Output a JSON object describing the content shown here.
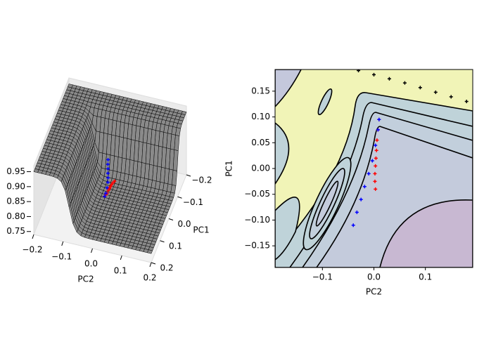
{
  "chart_data": [
    {
      "type": "surface3d",
      "xlabel": "PC2",
      "ylabel": "PC1",
      "xlim": [
        -0.2,
        0.2
      ],
      "xticks": [
        {
          "value": -0.2,
          "label": "−0.2"
        },
        {
          "value": -0.1,
          "label": "−0.1"
        },
        {
          "value": 0,
          "label": "0.0"
        },
        {
          "value": 0.1,
          "label": "0.1"
        },
        {
          "value": 0.2,
          "label": "0.2"
        }
      ],
      "ylim": [
        -0.2,
        0.2
      ],
      "yticks": [
        {
          "value": -0.2,
          "label": "−0.2"
        },
        {
          "value": -0.1,
          "label": "−0.1"
        },
        {
          "value": 0,
          "label": "0.0"
        },
        {
          "value": 0.1,
          "label": "0.1"
        },
        {
          "value": 0.2,
          "label": "0.2"
        }
      ],
      "zlim": [
        0.74,
        0.97
      ],
      "zticks": [
        0.75,
        {
          "value": 0.8,
          "label": "0.80"
        },
        0.85,
        {
          "value": 0.9,
          "label": "0.90"
        },
        0.95
      ],
      "series": [
        {
          "color": "#ff0000",
          "x": [
            0.003,
            0.002,
            0.002,
            0.003,
            0.004,
            0.005,
            0.006,
            0.008,
            0.01
          ],
          "y": [
            -0.04,
            -0.025,
            -0.01,
            0.005,
            0.02,
            0.035,
            0.055,
            0.075,
            0.095
          ],
          "z": [
            0.79,
            0.795,
            0.8,
            0.805,
            0.81,
            0.815,
            0.82,
            0.83,
            0.84
          ]
        },
        {
          "color": "#0000ff",
          "x": [
            -0.04,
            -0.033,
            -0.025,
            -0.018,
            -0.01,
            -0.003,
            0.003,
            0.008,
            0.01
          ],
          "y": [
            -0.11,
            -0.085,
            -0.06,
            -0.035,
            -0.01,
            0.015,
            0.045,
            0.075,
            0.095
          ],
          "z": [
            0.8,
            0.805,
            0.81,
            0.815,
            0.82,
            0.825,
            0.83,
            0.835,
            0.84
          ]
        }
      ]
    },
    {
      "type": "contour",
      "xlabel": "PC2",
      "ylabel": "PC1",
      "xlim": [
        -0.192,
        0.192
      ],
      "xticks": [
        {
          "value": -0.1,
          "label": "−0.1"
        },
        {
          "value": 0,
          "label": "0.0"
        },
        0.1
      ],
      "ylim": [
        -0.192,
        0.192
      ],
      "yticks": [
        {
          "value": -0.15,
          "label": "−0.15"
        },
        {
          "value": -0.1,
          "label": "−0.10"
        },
        {
          "value": -0.05,
          "label": "−0.05"
        },
        {
          "value": 0,
          "label": "0.00"
        },
        0.05,
        {
          "value": 0.1,
          "label": "0.10"
        },
        0.15
      ],
      "series": [
        {
          "color": "#000000",
          "x": [
            -0.03,
            0.0,
            0.03,
            0.06,
            0.09,
            0.12,
            0.15,
            0.18
          ],
          "y": [
            0.19,
            0.182,
            0.174,
            0.166,
            0.157,
            0.148,
            0.139,
            0.13
          ]
        },
        {
          "color": "#ff0000",
          "x": [
            0.003,
            0.002,
            0.002,
            0.003,
            0.004,
            0.005,
            0.006,
            0.008,
            0.01
          ],
          "y": [
            -0.04,
            -0.025,
            -0.01,
            0.005,
            0.02,
            0.035,
            0.055,
            0.075,
            0.095
          ]
        },
        {
          "color": "#0000ff",
          "x": [
            -0.04,
            -0.033,
            -0.025,
            -0.018,
            -0.01,
            -0.003,
            0.003,
            0.008,
            0.01
          ],
          "y": [
            -0.11,
            -0.085,
            -0.06,
            -0.035,
            -0.01,
            0.015,
            0.045,
            0.075,
            0.095
          ]
        }
      ]
    }
  ]
}
